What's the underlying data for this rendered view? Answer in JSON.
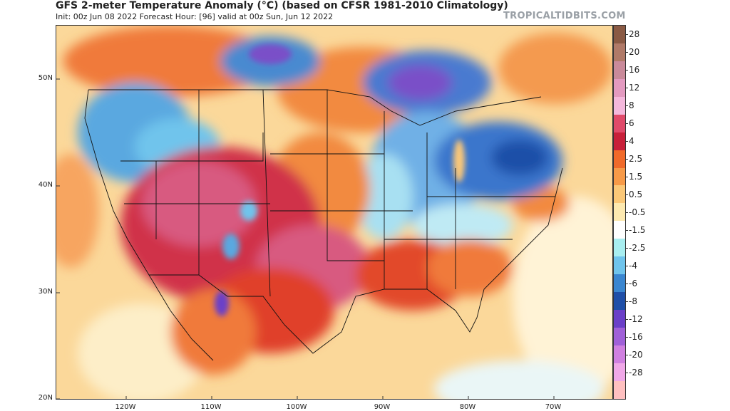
{
  "header": {
    "title": "GFS 2-meter Temperature Anomaly (°C) (based on CFSR 1981-2010 Climatology)",
    "subtitle": "Init: 00z Jun 08 2022   Forecast Hour: [96]   valid at 00z Sun, Jun 12 2022",
    "brand": "TROPICALTIDBITS.COM"
  },
  "axes": {
    "lat_labels": [
      "50N",
      "40N",
      "30N",
      "20N"
    ],
    "lon_labels": [
      "120W",
      "110W",
      "100W",
      "90W",
      "80W",
      "70W"
    ]
  },
  "colorbar": {
    "labels": [
      "28",
      "20",
      "16",
      "12",
      "8",
      "6",
      "4",
      "2.5",
      "1.5",
      "0.5",
      "-0.5",
      "-1.5",
      "-2.5",
      "-4",
      "-6",
      "-8",
      "-12",
      "-16",
      "-20",
      "-28"
    ],
    "colors": [
      "#8a5a44",
      "#b07a68",
      "#c98a9a",
      "#e39ac0",
      "#f4b8dc",
      "#e04a6a",
      "#c8203a",
      "#f06a2a",
      "#f79a48",
      "#fbc878",
      "#fde9b0",
      "#ffffff",
      "#a8eef0",
      "#6fc4ec",
      "#3a86d0",
      "#1f4fa8",
      "#6a3fc8",
      "#a060d8",
      "#d080e0",
      "#f0a8e8",
      "#ffc0c0"
    ]
  }
}
